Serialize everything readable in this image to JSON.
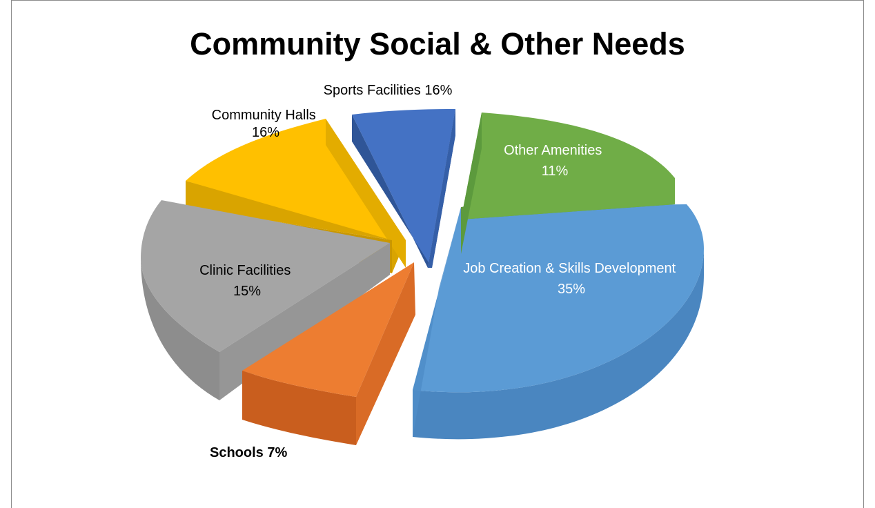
{
  "chart_data": {
    "type": "pie",
    "title": "Community Social & Other Needs",
    "three_d": true,
    "exploded": true,
    "slices": [
      {
        "name": "Job Creation & Skills Development",
        "value": 35,
        "label": "35%",
        "color": "#5b9bd5"
      },
      {
        "name": "Schools",
        "value": 7,
        "label": "7%",
        "color": "#ed7d31"
      },
      {
        "name": "Clinic Facilities",
        "value": 15,
        "label": "15%",
        "color": "#a5a5a5"
      },
      {
        "name": "Community Halls",
        "value": 16,
        "label": "16%",
        "color": "#ffc000"
      },
      {
        "name": "Sports Facilities",
        "value": 16,
        "label": "16%",
        "color": "#4472c4"
      },
      {
        "name": "Other Amenities",
        "value": 11,
        "label": "11%",
        "color": "#70ad47"
      }
    ],
    "label_texts": {
      "job": [
        "Job Creation & Skills Development",
        "35%"
      ],
      "schools": [
        "Schools 7%"
      ],
      "clinic": [
        "Clinic Facilities",
        "15%"
      ],
      "halls": [
        "Community Halls",
        "16%"
      ],
      "sports": [
        "Sports Facilities 16%"
      ],
      "other": [
        "Other Amenities",
        "11%"
      ]
    }
  }
}
